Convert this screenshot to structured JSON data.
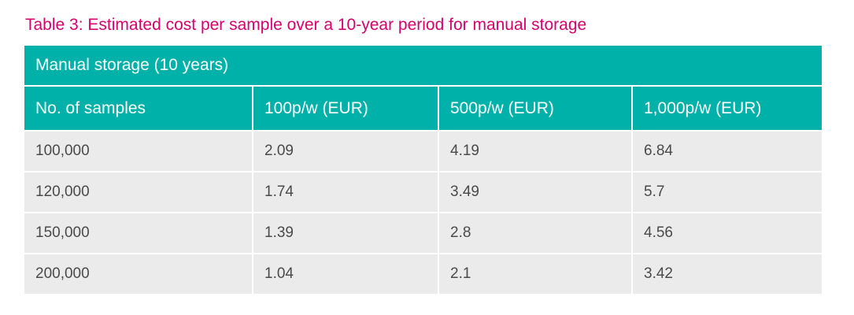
{
  "caption": "Table 3: Estimated cost per sample over a 10-year period for manual storage",
  "table": {
    "banner": "Manual storage (10 years)",
    "headers": [
      "No. of samples",
      "100p/w (EUR)",
      "500p/w (EUR)",
      "1,000p/w (EUR)"
    ],
    "rows": [
      [
        "100,000",
        "2.09",
        "4.19",
        "6.84"
      ],
      [
        "120,000",
        "1.74",
        "3.49",
        "5.7"
      ],
      [
        "150,000",
        "1.39",
        "2.8",
        "4.56"
      ],
      [
        "200,000",
        "1.04",
        "2.1",
        "3.42"
      ]
    ]
  },
  "colors": {
    "caption": "#d6006e",
    "header_bg": "#00b1aa",
    "row_bg": "#ebebeb"
  }
}
